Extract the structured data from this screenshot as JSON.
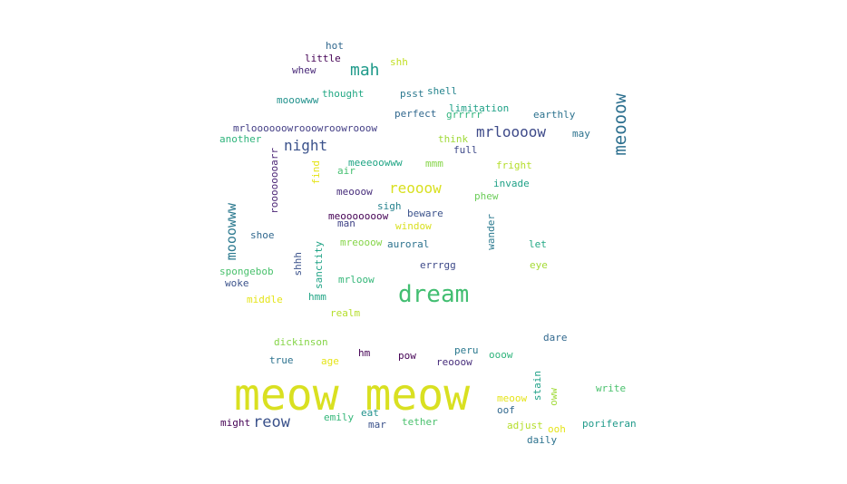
{
  "words": [
    {
      "text": "meow meow",
      "color": "#d9e021"
    },
    {
      "text": "dream",
      "color": "#42be71"
    },
    {
      "text": "mah",
      "color": "#1f9a8a"
    },
    {
      "text": "meooow",
      "color": "#2c6f8e"
    },
    {
      "text": "night",
      "color": "#3b528b"
    },
    {
      "text": "mrloooow",
      "color": "#3e4a89"
    },
    {
      "text": "reooow",
      "color": "#d9e021"
    },
    {
      "text": "reow",
      "color": "#3b528b"
    },
    {
      "text": "mooowww",
      "color": "#2a788e"
    },
    {
      "text": "hot",
      "color": "#31688e"
    },
    {
      "text": "little",
      "color": "#440154"
    },
    {
      "text": "shh",
      "color": "#c2df23"
    },
    {
      "text": "whew",
      "color": "#482878"
    },
    {
      "text": "mooowww",
      "color": "#21918c"
    },
    {
      "text": "thought",
      "color": "#22a884"
    },
    {
      "text": "psst",
      "color": "#2a788e"
    },
    {
      "text": "shell",
      "color": "#25858e"
    },
    {
      "text": "limitation",
      "color": "#1fa187"
    },
    {
      "text": "perfect",
      "color": "#31688e"
    },
    {
      "text": "grrrrr",
      "color": "#2fb47c"
    },
    {
      "text": "earthly",
      "color": "#2c728e"
    },
    {
      "text": "mrloooooowrooowroowrooow",
      "color": "#433e85"
    },
    {
      "text": "another",
      "color": "#2fb47c"
    },
    {
      "text": "think",
      "color": "#a0da39"
    },
    {
      "text": "may",
      "color": "#2c728e"
    },
    {
      "text": "full",
      "color": "#3e4989"
    },
    {
      "text": "roooooooarr",
      "color": "#482173"
    },
    {
      "text": "find",
      "color": "#e5e419"
    },
    {
      "text": "air",
      "color": "#44bf70"
    },
    {
      "text": "meeeoowww",
      "color": "#21a585"
    },
    {
      "text": "mmm",
      "color": "#86d549"
    },
    {
      "text": "fright",
      "color": "#b5de2b"
    },
    {
      "text": "invade",
      "color": "#1fa187"
    },
    {
      "text": "meooow",
      "color": "#472d7b"
    },
    {
      "text": "phew",
      "color": "#6ccd5a"
    },
    {
      "text": "sigh",
      "color": "#26828e"
    },
    {
      "text": "beware",
      "color": "#3b528b"
    },
    {
      "text": "meooooooow",
      "color": "#440154"
    },
    {
      "text": "man",
      "color": "#414487"
    },
    {
      "text": "window",
      "color": "#d9e021"
    },
    {
      "text": "wander",
      "color": "#2a788e"
    },
    {
      "text": "shoe",
      "color": "#31688e"
    },
    {
      "text": "mreooow",
      "color": "#86d549"
    },
    {
      "text": "auroral",
      "color": "#2c728e"
    },
    {
      "text": "let",
      "color": "#22a884"
    },
    {
      "text": "sanctity",
      "color": "#20a386"
    },
    {
      "text": "shhh",
      "color": "#3b528b"
    },
    {
      "text": "errrgg",
      "color": "#3e4a89"
    },
    {
      "text": "eye",
      "color": "#a5db36"
    },
    {
      "text": "spongebob",
      "color": "#4ac16d"
    },
    {
      "text": "woke",
      "color": "#3b528b"
    },
    {
      "text": "mrloow",
      "color": "#35b779"
    },
    {
      "text": "middle",
      "color": "#e5e419"
    },
    {
      "text": "hmm",
      "color": "#21a585"
    },
    {
      "text": "realm",
      "color": "#b5de2b"
    },
    {
      "text": "dare",
      "color": "#31688e"
    },
    {
      "text": "dickinson",
      "color": "#86d549"
    },
    {
      "text": "hm",
      "color": "#440154"
    },
    {
      "text": "peru",
      "color": "#2a788e"
    },
    {
      "text": "true",
      "color": "#2c728e"
    },
    {
      "text": "age",
      "color": "#e5e419"
    },
    {
      "text": "pow",
      "color": "#440154"
    },
    {
      "text": "reooow",
      "color": "#472d7b"
    },
    {
      "text": "ooow",
      "color": "#2fb47c"
    },
    {
      "text": "stain",
      "color": "#1fa187"
    },
    {
      "text": "oww",
      "color": "#a0da39"
    },
    {
      "text": "write",
      "color": "#4ac16d"
    },
    {
      "text": "meoow",
      "color": "#e5e419"
    },
    {
      "text": "oof",
      "color": "#31688e"
    },
    {
      "text": "emily",
      "color": "#35b779"
    },
    {
      "text": "eat",
      "color": "#21918c"
    },
    {
      "text": "tether",
      "color": "#4ac16d"
    },
    {
      "text": "might",
      "color": "#440154"
    },
    {
      "text": "mar",
      "color": "#3b528b"
    },
    {
      "text": "adjust",
      "color": "#b5de2b"
    },
    {
      "text": "ooh",
      "color": "#e5e419"
    },
    {
      "text": "poriferan",
      "color": "#1f9a8a"
    },
    {
      "text": "daily",
      "color": "#2c728e"
    }
  ]
}
